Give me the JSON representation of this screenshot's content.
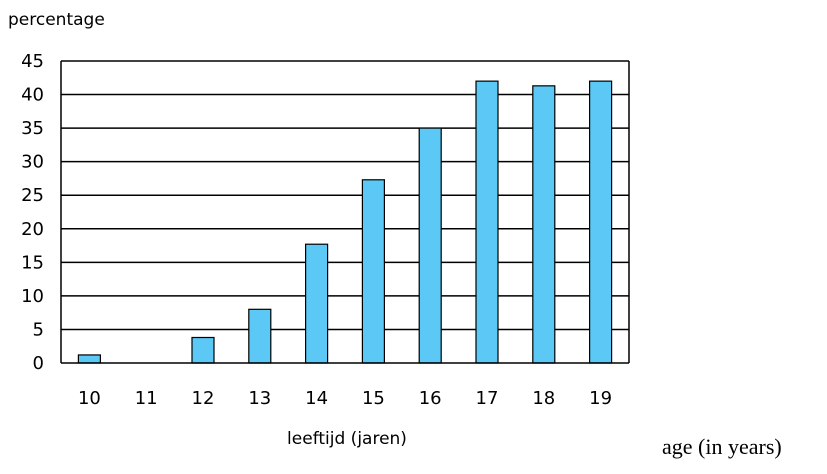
{
  "chart_data": {
    "type": "bar",
    "categories": [
      "10",
      "11",
      "12",
      "13",
      "14",
      "15",
      "16",
      "17",
      "18",
      "19"
    ],
    "values": [
      1.2,
      0,
      3.8,
      8,
      17.7,
      27.3,
      35,
      42,
      41.3,
      42
    ],
    "ylabel": "percentage",
    "xlabel": "leeftijd (jaren)",
    "ylim": [
      0,
      45
    ],
    "yticks": [
      0,
      5,
      10,
      15,
      20,
      25,
      30,
      35,
      40,
      45
    ],
    "grid": true,
    "legend": "none",
    "bar_color": "#5bc8f5",
    "bar_edge_color": "#000000"
  },
  "annotation": {
    "text": "age (in years)"
  }
}
